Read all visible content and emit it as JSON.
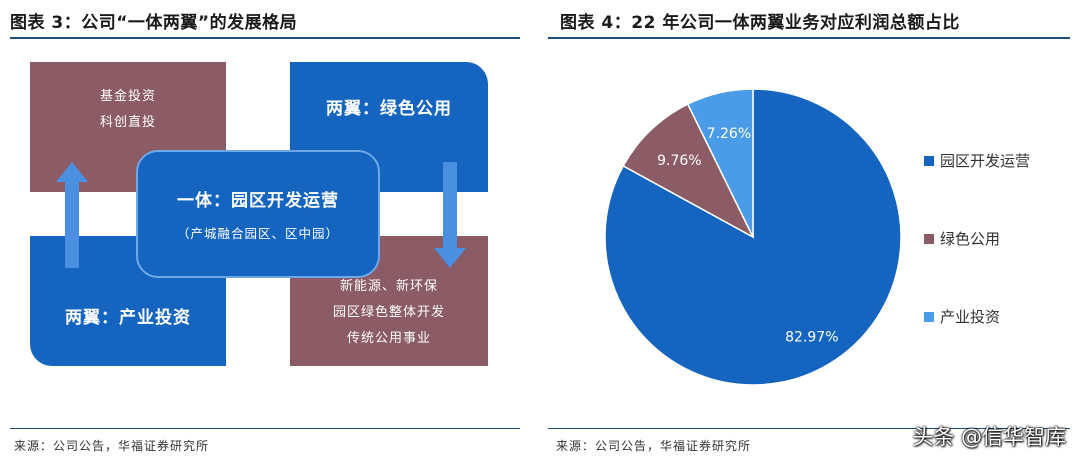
{
  "left_panel": {
    "title": "图表 3：公司“一体两翼”的发展格局",
    "source": "来源：公司公告，华福证券研究所",
    "top_left": {
      "line1": "基金投资",
      "line2": "科创直投"
    },
    "top_right": {
      "label": "两翼：绿色公用"
    },
    "center": {
      "title": "一体：园区开发运营",
      "subtitle": "（产城融合园区、区中园）"
    },
    "bottom_left": {
      "label": "两翼：产业投资"
    },
    "bottom_right": {
      "line1": "新能源、新环保",
      "line2": "园区绿色整体开发",
      "line3": "传统公用事业"
    },
    "colors": {
      "mauve": "#8b5b66",
      "blue": "#1565c0",
      "arrow": "#4a8fe0"
    }
  },
  "right_panel": {
    "title": "图表 4：22 年公司一体两翼业务对应利润总额占比",
    "source": "来源：公司公告，华福证券研究所"
  },
  "chart_data": {
    "type": "pie",
    "title": "22 年公司一体两翼业务对应利润总额占比",
    "slices": [
      {
        "label": "园区开发运营",
        "value": 82.97,
        "display": "82.97%",
        "color": "#1565c0"
      },
      {
        "label": "绿色公用",
        "value": 9.76,
        "display": "9.76%",
        "color": "#8b5b66"
      },
      {
        "label": "产业投资",
        "value": 7.26,
        "display": "7.26%",
        "color": "#4a9be8"
      }
    ],
    "legend_position": "right"
  },
  "watermark": "头条 @信华智库"
}
